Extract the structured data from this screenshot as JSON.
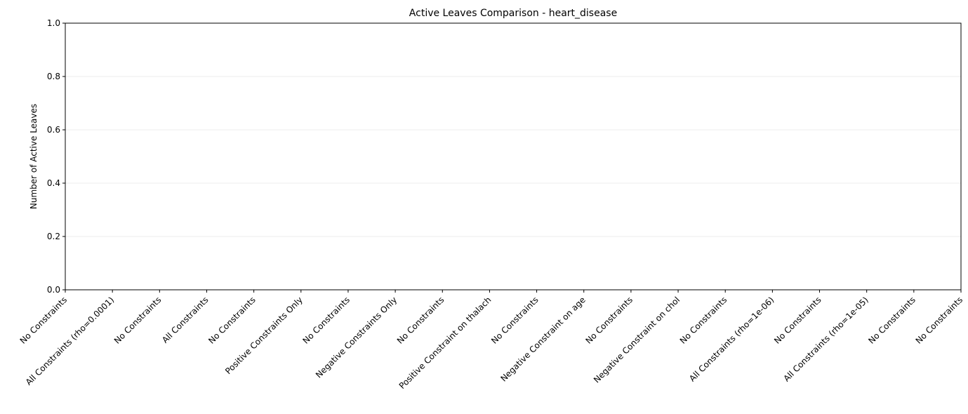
{
  "chart_data": {
    "type": "bar",
    "title": "Active Leaves Comparison - heart_disease",
    "ylabel": "Number of Active Leaves",
    "categories": [
      "No Constraints",
      "All Constraints (rho=0.0001)",
      "No Constraints",
      "All Constraints",
      "No Constraints",
      "Positive Constraints Only",
      "No Constraints",
      "Negative Constraints Only",
      "No Constraints",
      "Positive Constraint on thalach",
      "No Constraints",
      "Negative Constraint on age",
      "No Constraints",
      "Negative Constraint on chol",
      "No Constraints",
      "All Constraints (rho=1e-06)",
      "No Constraints",
      "All Constraints (rho=1e-05)",
      "No Constraints",
      "No Constraints"
    ],
    "values": [
      0,
      0,
      0,
      0,
      0,
      0,
      0,
      0,
      0,
      0,
      0,
      0,
      0,
      0,
      0,
      0,
      0,
      0,
      0,
      0
    ],
    "color": "#1f77b4",
    "ylim": [
      0,
      1
    ],
    "yticks": [
      {
        "value": 0,
        "label": "0.0"
      },
      {
        "value": 0.2,
        "label": "0.2"
      },
      {
        "value": 0.4,
        "label": "0.4"
      },
      {
        "value": 0.6,
        "label": "0.6"
      },
      {
        "value": 0.8,
        "label": "0.8"
      },
      {
        "value": 1,
        "label": "1.0"
      }
    ],
    "grid": true
  }
}
